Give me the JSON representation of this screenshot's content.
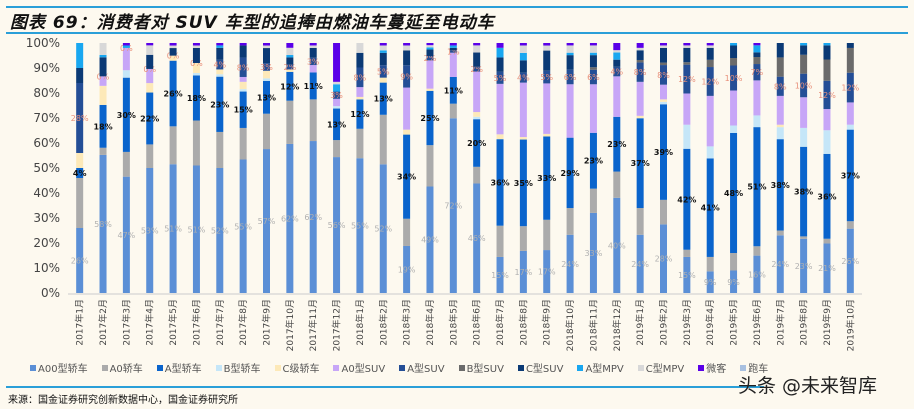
{
  "title": "图表 69：消费者对 SUV 车型的追捧由燃油车蔓延至电动车",
  "source": "来源：国金证券研究创新数据中心，国金证券研究所",
  "watermark": "头条 @未来智库",
  "chart_data": {
    "type": "bar",
    "stacked": "percent",
    "title": "",
    "xlabel": "",
    "ylabel": "",
    "ylim": [
      0,
      100
    ],
    "yticks": [
      "0%",
      "10%",
      "20%",
      "30%",
      "40%",
      "50%",
      "60%",
      "70%",
      "80%",
      "90%",
      "100%"
    ],
    "legend_position": "bottom",
    "categories": [
      "2017年1月",
      "2017年2月",
      "2017年3月",
      "2017年4月",
      "2017年5月",
      "2017年6月",
      "2017年7月",
      "2017年8月",
      "2017年9月",
      "2017年10月",
      "2017年11月",
      "2017年12月",
      "2018年1月",
      "2018年2月",
      "2018年3月",
      "2018年4月",
      "2018年5月",
      "2018年6月",
      "2018年7月",
      "2018年8月",
      "2018年9月",
      "2018年10月",
      "2018年11月",
      "2018年12月",
      "2019年1月",
      "2019年2月",
      "2019年3月",
      "2019年4月",
      "2019年5月",
      "2019年6月",
      "2019年7月",
      "2019年8月",
      "2019年9月",
      "2019年10月"
    ],
    "series": [
      {
        "name": "A00型轿车",
        "color": "#5b8fd6",
        "label_color": "#b0b0b0",
        "labeled": true,
        "values": [
          26,
          58,
          47,
          53,
          51,
          51,
          52,
          55,
          57,
          62,
          62,
          56,
          55,
          52,
          19,
          49,
          72,
          46,
          15,
          17,
          17,
          24,
          33,
          40,
          24,
          28,
          15,
          9,
          9,
          16,
          24,
          23,
          21,
          26
        ]
      },
      {
        "name": "A0轿车",
        "color": "#ababab",
        "values": [
          20,
          3,
          10,
          10,
          15,
          18,
          15,
          13,
          14,
          18,
          17,
          7,
          12,
          20,
          11,
          19,
          6,
          7,
          13,
          10,
          12,
          11,
          10,
          11,
          11,
          10,
          3,
          6,
          7,
          4,
          2,
          1,
          2,
          3
        ]
      },
      {
        "name": "A型轿车",
        "color": "#0a64cc",
        "label_color": "#111111",
        "labeled": true,
        "values": [
          4,
          18,
          30,
          22,
          26,
          18,
          23,
          15,
          13,
          12,
          11,
          13,
          12,
          13,
          34,
          25,
          11,
          20,
          36,
          35,
          33,
          29,
          23,
          23,
          37,
          39,
          42,
          41,
          48,
          51,
          38,
          38,
          36,
          37
        ]
      },
      {
        "name": "B型轿车",
        "color": "#c5e6f8",
        "values": [
          0,
          0,
          3,
          0,
          0,
          1,
          1,
          1,
          1,
          0,
          0,
          1,
          0,
          0,
          0,
          0,
          0,
          1,
          0,
          0,
          0,
          0,
          0,
          0,
          0,
          1,
          10,
          5,
          3,
          5,
          5,
          8,
          10,
          2
        ]
      },
      {
        "name": "C级轿车",
        "color": "#fde9b8",
        "values": [
          6,
          8,
          0,
          4,
          2,
          4,
          2,
          3,
          3,
          1,
          0,
          0,
          1,
          2,
          2,
          1,
          0,
          2,
          2,
          1,
          1,
          0,
          0,
          0,
          1,
          1,
          0,
          0,
          0,
          0,
          1,
          0,
          0,
          0
        ]
      },
      {
        "name": "A0型SUV",
        "color": "#c7a6f7",
        "values": [
          0,
          4,
          9,
          6,
          0,
          0,
          0,
          2,
          0,
          0,
          3,
          3,
          4,
          0,
          17,
          13,
          10,
          17,
          21,
          22,
          20,
          22,
          20,
          17,
          14,
          6,
          13,
          21,
          14,
          15,
          12,
          13,
          9,
          9
        ]
      },
      {
        "name": "A型SUV",
        "color": "#244e96",
        "label_color": "#e8907a",
        "labeled": true,
        "values": [
          28,
          0,
          0,
          0,
          0,
          0,
          4,
          8,
          3,
          2,
          3,
          3,
          8,
          5,
          9,
          2,
          1,
          2,
          5,
          4,
          5,
          6,
          6,
          4,
          8,
          8,
          12,
          12,
          10,
          7,
          8,
          10,
          12,
          12
        ]
      },
      {
        "name": "B型SUV",
        "color": "#6b6b6b",
        "values": [
          0,
          0,
          0,
          0,
          0,
          0,
          0,
          0,
          0,
          0,
          0,
          0,
          0,
          0,
          0,
          0,
          0,
          0,
          0,
          0,
          0,
          0,
          1,
          0,
          1,
          1,
          1,
          3,
          3,
          3,
          8,
          8,
          9,
          10
        ]
      },
      {
        "name": "C型SUV",
        "color": "#0b3a75",
        "values": [
          6,
          8,
          0,
          6,
          3,
          6,
          5,
          5,
          6,
          3,
          4,
          0,
          6,
          5,
          6,
          3,
          1,
          6,
          6,
          5,
          8,
          6,
          5,
          3,
          4,
          6,
          6,
          5,
          5,
          2,
          6,
          4,
          6,
          2
        ]
      },
      {
        "name": "A型MPV",
        "color": "#19a7f0",
        "values": [
          10,
          1,
          1,
          0,
          0,
          0,
          1,
          0,
          0,
          1,
          0,
          3,
          0,
          1,
          0,
          1,
          1,
          0,
          4,
          3,
          0,
          1,
          1,
          3,
          0,
          0,
          0,
          0,
          1,
          3,
          0,
          1,
          1,
          0
        ]
      },
      {
        "name": "C型MPV",
        "color": "#d8d8d8",
        "values": [
          0,
          5,
          0,
          4,
          1,
          1,
          0,
          0,
          1,
          3,
          1,
          1,
          4,
          2,
          2,
          1,
          0,
          3,
          0,
          3,
          2,
          3,
          3,
          1,
          1,
          1,
          1,
          1,
          0,
          0,
          0,
          0,
          0,
          0
        ]
      },
      {
        "name": "微客",
        "color": "#5a00e8",
        "values": [
          0,
          0,
          1,
          1,
          1,
          1,
          1,
          1,
          1,
          2,
          1,
          16,
          0,
          1,
          1,
          1,
          1,
          1,
          2,
          1,
          1,
          1,
          1,
          3,
          2,
          1,
          1,
          1,
          0,
          1,
          0,
          0,
          0,
          0
        ]
      },
      {
        "name": "跑车",
        "color": "#a8c0e0",
        "values": [
          0,
          0,
          0,
          0,
          0,
          0,
          0,
          0,
          0,
          0,
          0,
          0,
          0,
          0,
          0,
          0,
          0,
          0,
          0,
          0,
          0,
          0,
          0,
          0,
          0,
          0,
          0,
          0,
          0,
          0,
          0,
          0,
          0,
          0
        ]
      }
    ]
  }
}
